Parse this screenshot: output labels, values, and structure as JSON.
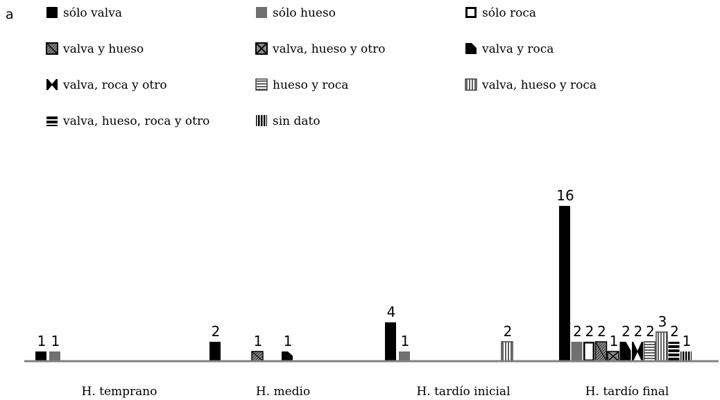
{
  "panel_label": "a",
  "chart_data": {
    "type": "bar",
    "title": "",
    "xlabel": "",
    "ylabel": "",
    "ylim": [
      0,
      16
    ],
    "grid": false,
    "legend_position": "top",
    "categories": [
      "H. temprano",
      "H. medio",
      "H. tardío inicial",
      "H. tardío final"
    ],
    "series": [
      {
        "name": "sólo valva",
        "pattern": "solid-black",
        "values": [
          1,
          2,
          4,
          16
        ]
      },
      {
        "name": "sólo hueso",
        "pattern": "solid-gray",
        "values": [
          1,
          0,
          1,
          2
        ]
      },
      {
        "name": "sólo roca",
        "pattern": "outline",
        "values": [
          0,
          0,
          0,
          2
        ]
      },
      {
        "name": "valva y hueso",
        "pattern": "diag-gray",
        "values": [
          0,
          1,
          0,
          2
        ]
      },
      {
        "name": "valva, hueso y otro",
        "pattern": "cross-gray",
        "values": [
          0,
          0,
          0,
          1
        ]
      },
      {
        "name": "valva y roca",
        "pattern": "half-diag",
        "values": [
          0,
          1,
          0,
          2
        ]
      },
      {
        "name": "valva, roca y otro",
        "pattern": "cross-white",
        "values": [
          0,
          0,
          0,
          2
        ]
      },
      {
        "name": "hueso y roca",
        "pattern": "hlines-gray",
        "values": [
          0,
          0,
          0,
          2
        ]
      },
      {
        "name": "valva, hueso y roca",
        "pattern": "vlines-gray",
        "values": [
          0,
          0,
          2,
          3
        ]
      },
      {
        "name": "valva, hueso, roca y otro",
        "pattern": "hbars-black",
        "values": [
          0,
          0,
          0,
          2
        ]
      },
      {
        "name": "sin dato",
        "pattern": "vbars-black",
        "values": [
          0,
          0,
          0,
          1
        ]
      }
    ],
    "colors": {
      "black": "#000000",
      "gray": "#707070",
      "axis": "#808080"
    }
  }
}
